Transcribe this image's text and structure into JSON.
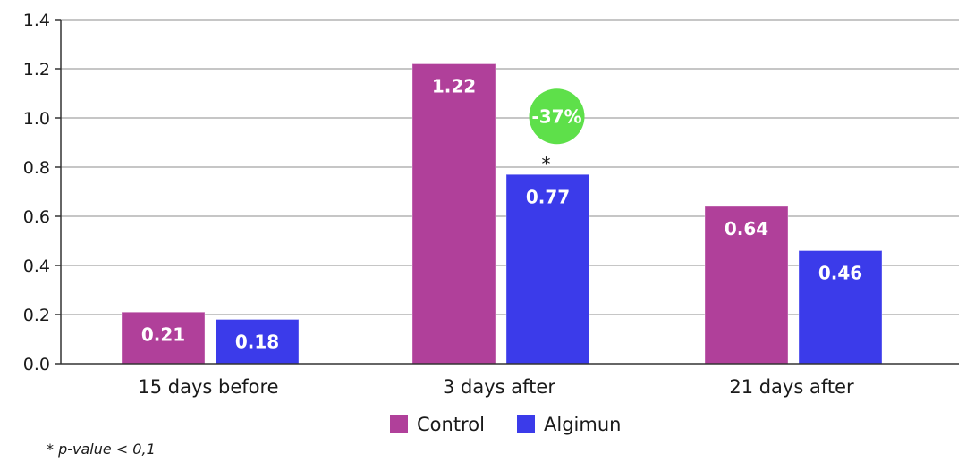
{
  "chart_data": {
    "type": "bar",
    "title": "",
    "xlabel": "",
    "ylabel": "",
    "categories": [
      "15 days before",
      "3 days after",
      "21 days after"
    ],
    "series": [
      {
        "name": "Control",
        "color": "#b0409a",
        "values": [
          0.21,
          1.22,
          0.64
        ],
        "labels": [
          "0.21",
          "1.22",
          "0.64"
        ]
      },
      {
        "name": "Algimun",
        "color": "#3b3bea",
        "values": [
          0.18,
          0.77,
          0.46
        ],
        "labels": [
          "0.18",
          "0.77",
          "0.46"
        ]
      }
    ],
    "ylim": [
      0,
      1.4
    ],
    "yticks": [
      0,
      0.2,
      0.4,
      0.6,
      0.8,
      1.0,
      1.2,
      1.4
    ],
    "ytick_labels": [
      "0.0",
      "0.2",
      "0.4",
      "0.6",
      "0.8",
      "1.0",
      "1.2",
      "1.4"
    ],
    "grid": true,
    "legend_position": "bottom-center",
    "annotations": [
      {
        "category": "3 days after",
        "series": "Algimun",
        "text": "-37%",
        "type": "badge",
        "color": "#5ee04a"
      },
      {
        "category": "3 days after",
        "series": "Algimun",
        "text": "*",
        "type": "significance"
      }
    ]
  },
  "footnote": "* p-value < 0,1"
}
